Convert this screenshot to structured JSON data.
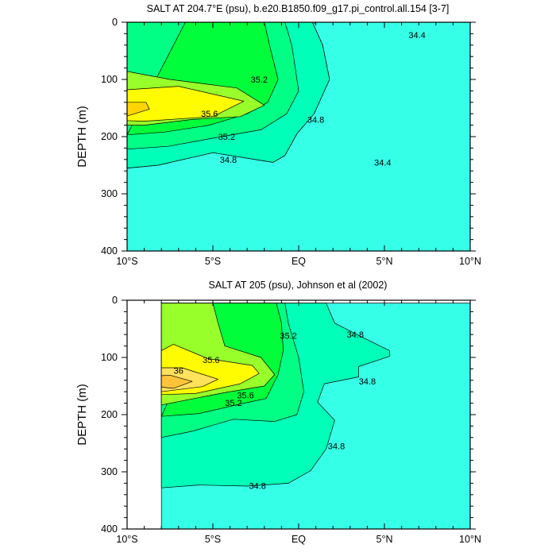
{
  "chart_data": [
    {
      "type": "contour",
      "title": "SALT AT 204.7°E (psu), b.e20.B1850.f09_g17.pi_control.all.154 [3-7]",
      "xlabel": "",
      "ylabel": "DEPTH (m)",
      "xlim": [
        -10,
        10
      ],
      "ylim": [
        400,
        0
      ],
      "x_ticks": [
        {
          "value": -10,
          "label": "10°S"
        },
        {
          "value": -5,
          "label": "5°S"
        },
        {
          "value": 0,
          "label": "EQ"
        },
        {
          "value": 5,
          "label": "5°N"
        },
        {
          "value": 10,
          "label": "10°N"
        }
      ],
      "y_ticks": [
        0,
        100,
        200,
        300,
        400
      ],
      "levels": [
        34.2,
        34.4,
        34.6,
        34.8,
        35.0,
        35.2,
        35.4,
        35.6,
        35.8
      ],
      "contour_labels": [
        {
          "text": "34.4",
          "x": 6.9,
          "y": 22
        },
        {
          "text": "35.2",
          "x": -2.3,
          "y": 100
        },
        {
          "text": "35.6",
          "x": -5.2,
          "y": 160
        },
        {
          "text": "34.8",
          "x": 1.0,
          "y": 170
        },
        {
          "text": "35.2",
          "x": -4.2,
          "y": 200
        },
        {
          "text": "34.8",
          "x": -4.1,
          "y": 240
        },
        {
          "text": "34.4",
          "x": 4.9,
          "y": 245
        }
      ],
      "bands": [
        {
          "level": "<34.2",
          "color": "#1ab0ff",
          "polygon": [
            [
              8.0,
              0
            ],
            [
              10,
              0
            ],
            [
              10,
              40
            ],
            [
              8.5,
              38
            ],
            [
              7.9,
              20
            ]
          ]
        },
        {
          "level": "34.2-34.4",
          "color": "#2ccdff",
          "polygon": [
            [
              6.5,
              0
            ],
            [
              10,
              0
            ],
            [
              10,
              112
            ],
            [
              8.7,
              90
            ],
            [
              7.4,
              68
            ],
            [
              6.9,
              52
            ],
            [
              6.7,
              25
            ]
          ]
        },
        {
          "level": "34.4-34.6",
          "color": "#00f0ff",
          "polygon": [
            [
              5.0,
              0
            ],
            [
              10,
              0
            ],
            [
              10,
              400
            ],
            [
              2.8,
              400
            ],
            [
              3.8,
              330
            ],
            [
              4.3,
              260
            ],
            [
              5.4,
              190
            ],
            [
              6.7,
              150
            ],
            [
              6.8,
              108
            ],
            [
              6.3,
              74
            ],
            [
              5.8,
              40
            ]
          ]
        },
        {
          "level": "34.6-34.8",
          "color": "#36ffe8",
          "polygon": [
            [
              1.0,
              0
            ],
            [
              10,
              0
            ],
            [
              10,
              400
            ],
            [
              -10,
              400
            ],
            [
              -10,
              0
            ],
            [
              0.8,
              0
            ],
            [
              1.4,
              40
            ],
            [
              1.8,
              100
            ],
            [
              0.9,
              160
            ],
            [
              -0.1,
              195
            ],
            [
              -0.8,
              233
            ],
            [
              -1.5,
              245
            ],
            [
              -5.0,
              228
            ],
            [
              -8.2,
              250
            ],
            [
              -10,
              255
            ]
          ]
        },
        {
          "level": "34.8-35.0",
          "color": "#00ffb8",
          "polygon": [
            [
              -10,
              0
            ],
            [
              0.8,
              0
            ],
            [
              1.4,
              40
            ],
            [
              1.8,
              100
            ],
            [
              0.9,
              160
            ],
            [
              -0.1,
              195
            ],
            [
              -0.8,
              233
            ],
            [
              -1.5,
              245
            ],
            [
              -5.0,
              228
            ],
            [
              -8.2,
              250
            ],
            [
              -10,
              255
            ]
          ]
        },
        {
          "level": "35.0-35.2",
          "color": "#00ff84",
          "polygon": [
            [
              -10,
              0
            ],
            [
              -0.8,
              0
            ],
            [
              -0.4,
              40
            ],
            [
              0,
              120
            ],
            [
              -0.7,
              160
            ],
            [
              -2.2,
              188
            ],
            [
              -4.5,
              200
            ],
            [
              -7.6,
              217
            ],
            [
              -10,
              222
            ]
          ]
        },
        {
          "level": "35.2-35.4",
          "color": "#00ff3a",
          "polygon": [
            [
              -6.6,
              0
            ],
            [
              -2.0,
              0
            ],
            [
              -1.7,
              40
            ],
            [
              -1.2,
              100
            ],
            [
              -1.8,
              140
            ],
            [
              -3.0,
              160
            ],
            [
              -5.2,
              180
            ],
            [
              -7.8,
              192
            ],
            [
              -10,
              197
            ]
          ]
        },
        {
          "level": "35.4-35.6",
          "color": "#98ff2a",
          "polygon": [
            [
              -10,
              86
            ],
            [
              -7.5,
              100
            ],
            [
              -3.6,
              115
            ],
            [
              -2.0,
              145
            ],
            [
              -3.4,
              165
            ],
            [
              -6.2,
              170
            ],
            [
              -9.0,
              180
            ],
            [
              -10,
              180
            ]
          ]
        },
        {
          "level": "35.6-35.8",
          "color": "#fffb00",
          "polygon": [
            [
              -10,
              118
            ],
            [
              -7.0,
              112
            ],
            [
              -3.2,
              138
            ],
            [
              -5.0,
              165
            ],
            [
              -9.0,
              173
            ],
            [
              -10,
              172
            ]
          ]
        },
        {
          "level": ">35.8",
          "color": "#ffd400",
          "polygon": [
            [
              -10,
              140
            ],
            [
              -8.9,
              140
            ],
            [
              -8.7,
              152
            ],
            [
              -10,
              164
            ]
          ]
        }
      ]
    },
    {
      "type": "contour",
      "title": "SALT AT 205 (psu), Johnson et al (2002)",
      "xlabel": "",
      "ylabel": "DEPTH (m)",
      "xlim": [
        -10,
        10
      ],
      "ylim": [
        400,
        0
      ],
      "x_ticks": [
        {
          "value": -10,
          "label": "10°S"
        },
        {
          "value": -5,
          "label": "5°S"
        },
        {
          "value": 0,
          "label": "EQ"
        },
        {
          "value": 5,
          "label": "5°N"
        },
        {
          "value": 10,
          "label": "10°N"
        }
      ],
      "y_ticks": [
        0,
        100,
        200,
        300,
        400
      ],
      "data_xlim": [
        -8,
        10
      ],
      "data_ylim": [
        5,
        400
      ],
      "levels": [
        34.4,
        34.6,
        34.8,
        35.0,
        35.2,
        35.4,
        35.6,
        35.8,
        36.0
      ],
      "contour_labels": [
        {
          "text": "35.2",
          "x": -0.6,
          "y": 62
        },
        {
          "text": "34.8",
          "x": 3.3,
          "y": 60
        },
        {
          "text": "35.6",
          "x": -5.1,
          "y": 104
        },
        {
          "text": "36",
          "x": -7.0,
          "y": 123
        },
        {
          "text": "35.6",
          "x": -3.1,
          "y": 166
        },
        {
          "text": "35.2",
          "x": -3.8,
          "y": 179
        },
        {
          "text": "34.8",
          "x": 4.0,
          "y": 142
        },
        {
          "text": "34.8",
          "x": 2.2,
          "y": 255
        },
        {
          "text": "34.8",
          "x": -2.4,
          "y": 324
        }
      ],
      "bands": [
        {
          "level": "34.4-34.6",
          "color": "#00f0ff",
          "polygon": [
            [
              4.2,
              5
            ],
            [
              10,
              5
            ],
            [
              10,
              136
            ],
            [
              8.4,
              139
            ],
            [
              7.0,
              100
            ],
            [
              5.6,
              62
            ],
            [
              4.8,
              40
            ]
          ]
        },
        {
          "level": "34.6-34.8",
          "color": "#36ffe8",
          "polygon": [
            [
              1.8,
              5
            ],
            [
              10,
              5
            ],
            [
              10,
              400
            ],
            [
              -8,
              400
            ],
            [
              -8,
              5
            ],
            [
              1.6,
              5
            ]
          ]
        },
        {
          "level": "34.8-35.0",
          "color": "#00ffb8",
          "polygon": [
            [
              -8,
              5
            ],
            [
              1.6,
              5
            ],
            [
              2.1,
              40
            ],
            [
              3.6,
              63
            ],
            [
              5.3,
              88
            ],
            [
              5.3,
              98
            ],
            [
              3.5,
              116
            ],
            [
              3.5,
              134
            ],
            [
              1.5,
              146
            ],
            [
              1.1,
              178
            ],
            [
              2.1,
              210
            ],
            [
              1.6,
              260
            ],
            [
              0.7,
              298
            ],
            [
              -0.6,
              320
            ],
            [
              -3.0,
              325
            ],
            [
              -5.8,
              323
            ],
            [
              -8,
              328
            ]
          ]
        },
        {
          "level": "35.0-35.2",
          "color": "#00ff84",
          "polygon": [
            [
              -8,
              5
            ],
            [
              -0.8,
              5
            ],
            [
              -0.6,
              40
            ],
            [
              0,
              100
            ],
            [
              0.3,
              160
            ],
            [
              -0.1,
              200
            ],
            [
              -1.4,
              212
            ],
            [
              -3.8,
              208
            ],
            [
              -6.2,
              229
            ],
            [
              -8,
              240
            ]
          ]
        },
        {
          "level": "35.2-35.4",
          "color": "#00ff3a",
          "polygon": [
            [
              -5.0,
              5
            ],
            [
              -1.3,
              5
            ],
            [
              -1.0,
              40
            ],
            [
              -0.9,
              88
            ],
            [
              -1.2,
              130
            ],
            [
              -1.9,
              172
            ],
            [
              -3.2,
              180
            ],
            [
              -5.8,
              198
            ],
            [
              -8,
              203
            ]
          ]
        },
        {
          "level": "35.4-35.6",
          "color": "#98ff2a",
          "polygon": [
            [
              -8,
              5
            ],
            [
              -5.0,
              5
            ],
            [
              -4.7,
              40
            ],
            [
              -4.3,
              80
            ],
            [
              -2.2,
              100
            ],
            [
              -1.4,
              130
            ],
            [
              -2.0,
              150
            ],
            [
              -4.4,
              162
            ],
            [
              -8,
              183
            ]
          ]
        },
        {
          "level": "35.6-35.8",
          "color": "#fffb00",
          "polygon": [
            [
              -8,
              88
            ],
            [
              -7.3,
              77
            ],
            [
              -5.3,
              102
            ],
            [
              -2.7,
              114
            ],
            [
              -2.3,
              128
            ],
            [
              -3.4,
              146
            ],
            [
              -6.0,
              163
            ],
            [
              -8,
              165
            ]
          ]
        },
        {
          "level": "35.8-36.0",
          "color": "#ffe25c",
          "polygon": [
            [
              -8,
              118
            ],
            [
              -6.8,
              118
            ],
            [
              -4.7,
              138
            ],
            [
              -5.6,
              151
            ],
            [
              -8,
              160
            ]
          ]
        },
        {
          "level": ">36.0",
          "color": "#ffc43a",
          "polygon": [
            [
              -8,
              132
            ],
            [
              -7.5,
              131
            ],
            [
              -6.2,
              142
            ],
            [
              -7.3,
              154
            ],
            [
              -8,
              152
            ]
          ]
        }
      ]
    }
  ]
}
